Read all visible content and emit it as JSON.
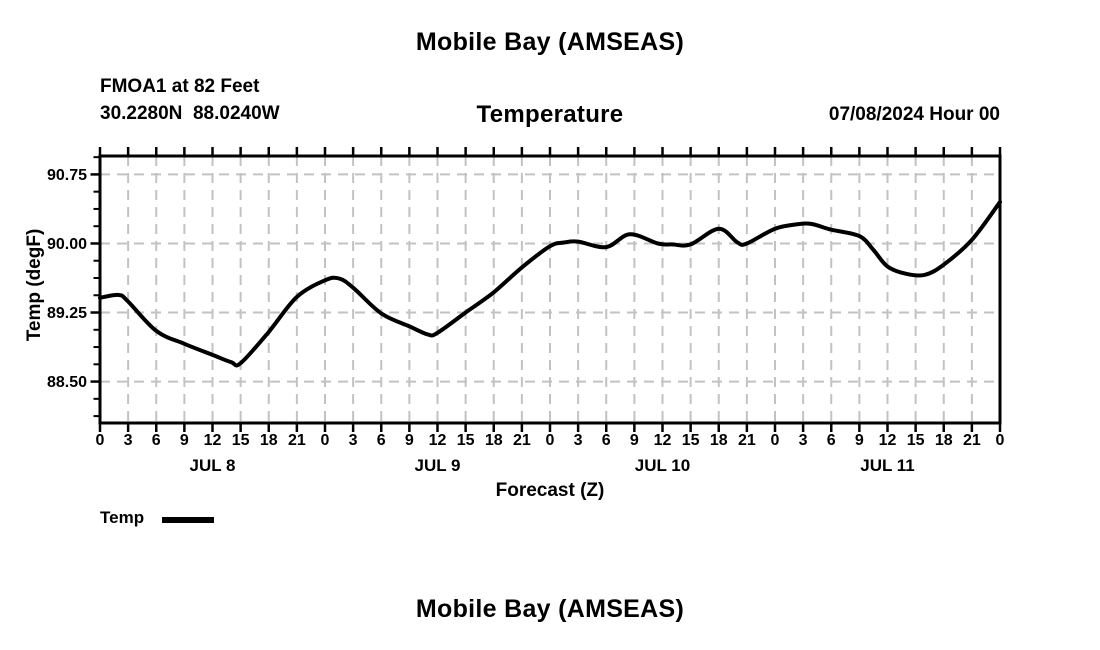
{
  "page": {
    "title_top": "Mobile Bay (AMSEAS)",
    "station_line1": "FMOA1 at 82 Feet",
    "station_line2": "30.2280N  88.0240W",
    "chart_subtitle": "Temperature",
    "run_info": "07/08/2024 Hour 00",
    "xaxis_title": "Forecast (Z)",
    "legend": {
      "label": "Temp",
      "swatch_color": "#000000"
    },
    "title_bottom": "Mobile Bay (AMSEAS)"
  },
  "chart_data": {
    "type": "line",
    "title": "Temperature",
    "xlabel": "Forecast (Z)",
    "ylabel": "Temp (degF)",
    "x_unit": "forecast hour (Z)",
    "xlim": [
      0,
      96
    ],
    "ylim": [
      88.05,
      90.95
    ],
    "x_major_step": 3,
    "x_tick_labels": [
      "0",
      "3",
      "6",
      "9",
      "12",
      "15",
      "18",
      "21",
      "0",
      "3",
      "6",
      "9",
      "12",
      "15",
      "18",
      "21",
      "0",
      "3",
      "6",
      "9",
      "12",
      "15",
      "18",
      "21",
      "0",
      "3",
      "6",
      "9",
      "12",
      "15",
      "18",
      "21",
      "0"
    ],
    "days": [
      {
        "label": "JUL 8",
        "center_hour": 12
      },
      {
        "label": "JUL 9",
        "center_hour": 36
      },
      {
        "label": "JUL 10",
        "center_hour": 60
      },
      {
        "label": "JUL 11",
        "center_hour": 84
      }
    ],
    "y_major_ticks": [
      {
        "value": 90.75,
        "label": "90.75"
      },
      {
        "value": 90.0,
        "label": "90.00"
      },
      {
        "value": 89.25,
        "label": "89.25"
      },
      {
        "value": 88.5,
        "label": "88.50"
      }
    ],
    "y_minor_step": 0.1875,
    "grid": {
      "show": true,
      "color": "#c2c2c2",
      "dash": [
        10,
        7
      ],
      "width": 2
    },
    "legend_position": "below-left",
    "series": [
      {
        "name": "Temp",
        "color": "#000000",
        "width": 4,
        "points": [
          [
            0,
            89.41
          ],
          [
            2,
            89.44
          ],
          [
            3,
            89.37
          ],
          [
            6,
            89.05
          ],
          [
            9,
            88.91
          ],
          [
            12,
            88.79
          ],
          [
            14,
            88.71
          ],
          [
            15,
            88.7
          ],
          [
            18,
            89.04
          ],
          [
            21,
            89.42
          ],
          [
            24,
            89.6
          ],
          [
            25.5,
            89.62
          ],
          [
            27,
            89.52
          ],
          [
            30,
            89.24
          ],
          [
            33,
            89.1
          ],
          [
            35,
            89.01
          ],
          [
            36,
            89.03
          ],
          [
            39,
            89.25
          ],
          [
            42,
            89.47
          ],
          [
            45,
            89.74
          ],
          [
            48,
            89.97
          ],
          [
            49.5,
            90.01
          ],
          [
            51,
            90.02
          ],
          [
            54,
            89.96
          ],
          [
            56.5,
            90.1
          ],
          [
            59.5,
            90.0
          ],
          [
            61,
            89.99
          ],
          [
            63,
            89.99
          ],
          [
            66,
            90.16
          ],
          [
            68,
            90.01
          ],
          [
            69,
            90.0
          ],
          [
            72,
            90.16
          ],
          [
            74.5,
            90.21
          ],
          [
            76,
            90.21
          ],
          [
            78,
            90.15
          ],
          [
            81,
            90.08
          ],
          [
            82.5,
            89.93
          ],
          [
            84,
            89.75
          ],
          [
            86,
            89.67
          ],
          [
            88,
            89.66
          ],
          [
            90,
            89.77
          ],
          [
            93,
            90.04
          ],
          [
            96,
            90.45
          ]
        ]
      }
    ]
  }
}
